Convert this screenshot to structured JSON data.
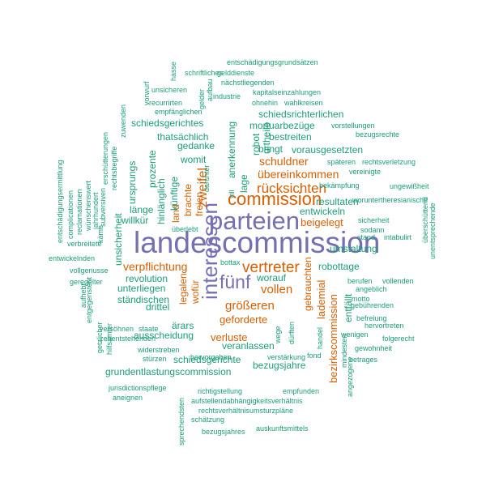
{
  "colors": {
    "purple": "#7570b3",
    "orange": "#d95f02",
    "teal": "#1b9e77"
  },
  "words": [
    {
      "t": "landescommission",
      "c": "purple"
    },
    {
      "t": "parteien",
      "c": "purple"
    },
    {
      "t": "interessen",
      "c": "purple"
    },
    {
      "t": "fünf",
      "c": "purple"
    },
    {
      "t": "commission",
      "c": "orange"
    },
    {
      "t": "vertreter",
      "c": "orange"
    },
    {
      "t": "rücksichten",
      "c": "orange"
    },
    {
      "t": "zweifel",
      "c": "orange"
    },
    {
      "t": "größeren",
      "c": "orange"
    },
    {
      "t": "vollen",
      "c": "orange"
    },
    {
      "t": "schuldner",
      "c": "orange"
    },
    {
      "t": "übereinkommen",
      "c": "orange"
    },
    {
      "t": "verpflichtung",
      "c": "orange"
    },
    {
      "t": "geforderte",
      "c": "orange"
    },
    {
      "t": "verluste",
      "c": "orange"
    },
    {
      "t": "beigelegt",
      "c": "orange"
    },
    {
      "t": "bezirkscommission",
      "c": "orange"
    },
    {
      "t": "lademial",
      "c": "orange"
    },
    {
      "t": "gebrauchten",
      "c": "orange"
    },
    {
      "t": "wofür",
      "c": "orange"
    },
    {
      "t": "legalen",
      "c": "orange"
    },
    {
      "t": "brachte",
      "c": "orange"
    },
    {
      "t": "land",
      "c": "orange"
    },
    {
      "t": "freien",
      "c": "orange"
    },
    {
      "t": "mortuarbezüge",
      "c": "teal"
    },
    {
      "t": "schiedsrichterlichen",
      "c": "teal"
    },
    {
      "t": "bestreiten",
      "c": "teal"
    },
    {
      "t": "vorausgesetzten",
      "c": "teal"
    },
    {
      "t": "bringt",
      "c": "teal"
    },
    {
      "t": "robot",
      "c": "teal"
    },
    {
      "t": "urtheile",
      "c": "teal"
    },
    {
      "t": "lage",
      "c": "teal"
    },
    {
      "t": "anerkennung",
      "c": "teal"
    },
    {
      "t": "gedanke",
      "c": "teal"
    },
    {
      "t": "thatsächlich",
      "c": "teal"
    },
    {
      "t": "womit",
      "c": "teal"
    },
    {
      "t": "schiedsgerichtes",
      "c": "teal"
    },
    {
      "t": "prozente",
      "c": "teal"
    },
    {
      "t": "ursprungs",
      "c": "teal"
    },
    {
      "t": "künftige",
      "c": "teal"
    },
    {
      "t": "hinlänglich",
      "c": "teal"
    },
    {
      "t": "länge",
      "c": "teal"
    },
    {
      "t": "willkür",
      "c": "teal"
    },
    {
      "t": "unsicherheit",
      "c": "teal"
    },
    {
      "t": "entwickeln",
      "c": "teal"
    },
    {
      "t": "resultaten",
      "c": "teal"
    },
    {
      "t": "umstaltung",
      "c": "teal"
    },
    {
      "t": "robottage",
      "c": "teal"
    },
    {
      "t": "revolution",
      "c": "teal"
    },
    {
      "t": "unterliegen",
      "c": "teal"
    },
    {
      "t": "ständischen",
      "c": "teal"
    },
    {
      "t": "drittel",
      "c": "teal"
    },
    {
      "t": "ärars",
      "c": "teal"
    },
    {
      "t": "ausscheidung",
      "c": "teal"
    },
    {
      "t": "veranlassen",
      "c": "teal"
    },
    {
      "t": "bezugsjahre",
      "c": "teal"
    },
    {
      "t": "schiedsgerichte",
      "c": "teal"
    },
    {
      "t": "grundentlastungscommission",
      "c": "teal"
    },
    {
      "t": "worauf",
      "c": "teal"
    },
    {
      "t": "entfällt",
      "c": "teal"
    },
    {
      "t": "bottax",
      "c": "teal"
    },
    {
      "t": "überlebt",
      "c": "teal"
    },
    {
      "t": "entschädigungsgrundsätzen",
      "c": "teal"
    },
    {
      "t": "schriftliches",
      "c": "teal"
    },
    {
      "t": "gelddienste",
      "c": "teal"
    },
    {
      "t": "nächstliegenden",
      "c": "teal"
    },
    {
      "t": "kapitalseinzahlungen",
      "c": "teal"
    },
    {
      "t": "ohnehin",
      "c": "teal"
    },
    {
      "t": "wahlkreisen",
      "c": "teal"
    },
    {
      "t": "industrie",
      "c": "teal"
    },
    {
      "t": "unsicheren",
      "c": "teal"
    },
    {
      "t": "recurrirten",
      "c": "teal"
    },
    {
      "t": "empfänglichen",
      "c": "teal"
    },
    {
      "t": "vorstellungen",
      "c": "teal"
    },
    {
      "t": "bezugsrechte",
      "c": "teal"
    },
    {
      "t": "späteren",
      "c": "teal"
    },
    {
      "t": "rechtsverletzung",
      "c": "teal"
    },
    {
      "t": "vereinigte",
      "c": "teal"
    },
    {
      "t": "bekämpfung",
      "c": "teal"
    },
    {
      "t": "ungewißheit",
      "c": "teal"
    },
    {
      "t": "woruntertheresianische",
      "c": "teal"
    },
    {
      "t": "sicherheit",
      "c": "teal"
    },
    {
      "t": "sodann",
      "c": "teal"
    },
    {
      "t": "stand",
      "c": "teal"
    },
    {
      "t": "intabulirt",
      "c": "teal"
    },
    {
      "t": "überschüttend",
      "c": "teal"
    },
    {
      "t": "unentsprechende",
      "c": "teal"
    },
    {
      "t": "berufen",
      "c": "teal"
    },
    {
      "t": "vollenden",
      "c": "teal"
    },
    {
      "t": "angeblich",
      "c": "teal"
    },
    {
      "t": "motto",
      "c": "teal"
    },
    {
      "t": "gebührenden",
      "c": "teal"
    },
    {
      "t": "befreiung",
      "c": "teal"
    },
    {
      "t": "hervortreten",
      "c": "teal"
    },
    {
      "t": "wenigen",
      "c": "teal"
    },
    {
      "t": "folgerecht",
      "c": "teal"
    },
    {
      "t": "gewohnheit",
      "c": "teal"
    },
    {
      "t": "betrages",
      "c": "teal"
    },
    {
      "t": "angezogene",
      "c": "teal"
    },
    {
      "t": "mindesten",
      "c": "teal"
    },
    {
      "t": "fond",
      "c": "teal"
    },
    {
      "t": "handel",
      "c": "teal"
    },
    {
      "t": "dürften",
      "c": "teal"
    },
    {
      "t": "wege",
      "c": "teal"
    },
    {
      "t": "widerstreben",
      "c": "teal"
    },
    {
      "t": "stürzen",
      "c": "teal"
    },
    {
      "t": "hervorgehen",
      "c": "teal"
    },
    {
      "t": "verstärkung",
      "c": "teal"
    },
    {
      "t": "jurisdictionspflege",
      "c": "teal"
    },
    {
      "t": "richtigstellung",
      "c": "teal"
    },
    {
      "t": "empfunden",
      "c": "teal"
    },
    {
      "t": "aneignen",
      "c": "teal"
    },
    {
      "t": "aufstellendabhängigkeitsverhältnis",
      "c": "teal"
    },
    {
      "t": "rechtsverhältnisumsturzpläne",
      "c": "teal"
    },
    {
      "t": "schätzung",
      "c": "teal"
    },
    {
      "t": "bezugsjahres",
      "c": "teal"
    },
    {
      "t": "auskunftsmittels",
      "c": "teal"
    },
    {
      "t": "sprechendsten",
      "c": "teal"
    },
    {
      "t": "versöhnen",
      "c": "teal"
    },
    {
      "t": "zehentstehenden",
      "c": "teal"
    },
    {
      "t": "staate",
      "c": "teal"
    },
    {
      "t": "entwickelnden",
      "c": "teal"
    },
    {
      "t": "vollgenusse",
      "c": "teal"
    },
    {
      "t": "geregelter",
      "c": "teal"
    },
    {
      "t": "verbreitete",
      "c": "teal"
    },
    {
      "t": "aufhebt",
      "c": "teal"
    },
    {
      "t": "entgegensteht",
      "c": "teal"
    },
    {
      "t": "getzlicher",
      "c": "teal"
    },
    {
      "t": "hilfsämter",
      "c": "teal"
    },
    {
      "t": "entschädigungsermittlung",
      "c": "teal"
    },
    {
      "t": "complicationen",
      "c": "teal"
    },
    {
      "t": "reclamationen",
      "c": "teal"
    },
    {
      "t": "wünschenswert",
      "c": "teal"
    },
    {
      "t": "jahrhundert",
      "c": "teal"
    },
    {
      "t": "subversiven",
      "c": "teal"
    },
    {
      "t": "erschütterungen",
      "c": "teal"
    },
    {
      "t": "rechtsbegriffe",
      "c": "teal"
    },
    {
      "t": "zuwenden",
      "c": "teal"
    },
    {
      "t": "vorwurf",
      "c": "teal"
    },
    {
      "t": "hasse",
      "c": "teal"
    },
    {
      "t": "gelder",
      "c": "teal"
    },
    {
      "t": "aufbau",
      "c": "teal"
    },
    {
      "t": "käme",
      "c": "teal"
    },
    {
      "t": "vill",
      "c": "teal"
    },
    {
      "t": "darunter",
      "c": "teal"
    }
  ]
}
